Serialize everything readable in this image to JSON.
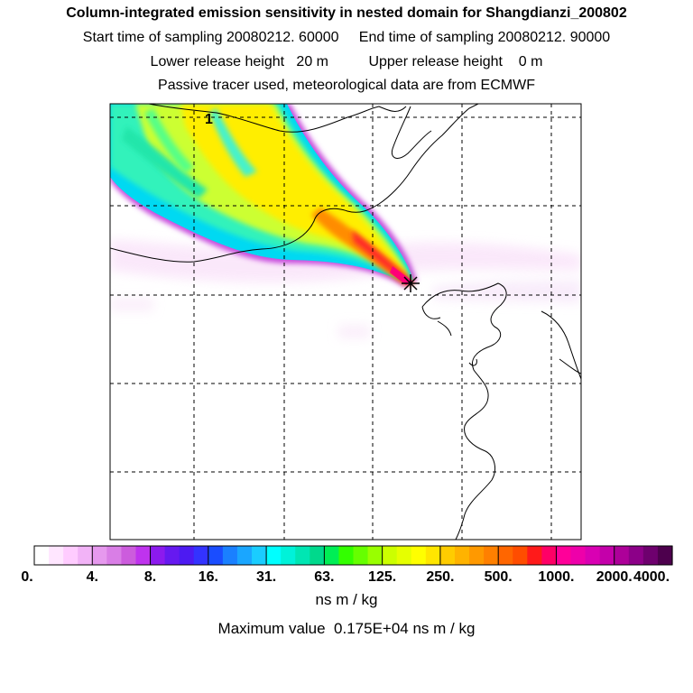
{
  "header": {
    "title": "Column-integrated emission sensitivity in nested domain for Shangdianzi_200802",
    "sampling_line": "Start time of sampling 20080212. 60000     End time of sampling 20080212. 90000",
    "release_line": "Lower release height   20 m          Upper release height    0 m",
    "tracer_line": "Passive tracer used, meteorological data are from ECMWF"
  },
  "map": {
    "marker_label": "1",
    "release_site_symbol": "star-marker"
  },
  "colorbar": {
    "labels": [
      "0.",
      "4.",
      "8.",
      "16.",
      "31.",
      "63.",
      "125.",
      "250.",
      "500.",
      "1000.",
      "2000.",
      "4000."
    ],
    "colors": [
      "#ffffff",
      "#ffe6ff",
      "#ffccff",
      "#f2b3f7",
      "#e699ee",
      "#d97ee6",
      "#cc5cdd",
      "#bf33ee",
      "#8c1aee",
      "#6619f0",
      "#4d1af2",
      "#3333ff",
      "#1a4dff",
      "#1a80ff",
      "#1aa6ff",
      "#1acdff",
      "#00ffff",
      "#00f2d9",
      "#00e6b3",
      "#00d98c",
      "#00ee55",
      "#33ff00",
      "#66ff00",
      "#99ff00",
      "#ccff00",
      "#e6ff00",
      "#ffff00",
      "#ffe600",
      "#ffcc00",
      "#ffb300",
      "#ff9900",
      "#ff8000",
      "#ff6600",
      "#ff4d00",
      "#ff1a1a",
      "#ff0066",
      "#ff0099",
      "#ee00aa",
      "#d900b3",
      "#c400aa",
      "#ad0099",
      "#8c0088",
      "#6e006e",
      "#4d004d"
    ],
    "units": "ns m / kg"
  },
  "footer": {
    "max_value": "Maximum value  0.175E+04 ns m / kg"
  }
}
